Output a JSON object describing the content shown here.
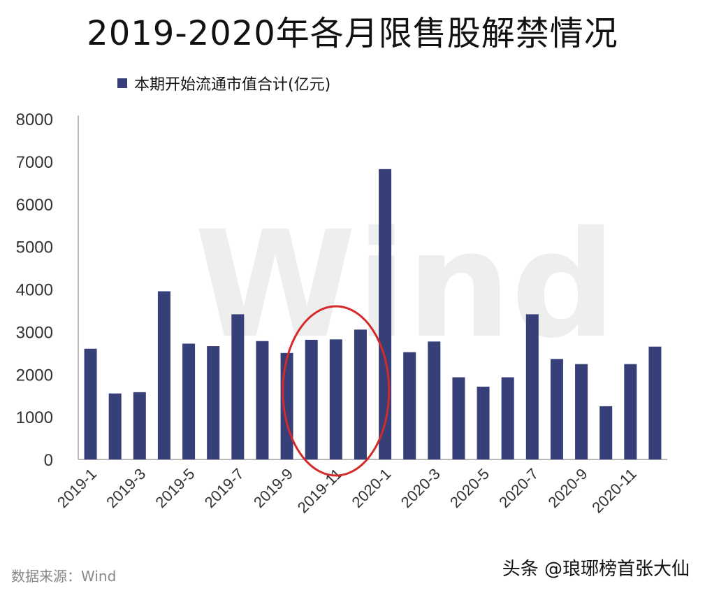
{
  "source_text": "数据来源：Wind",
  "credit_text": "头条 @琅琊榜首张大仙",
  "watermark": "Wind",
  "colors": {
    "bar": "#363f78",
    "axis": "#b8b8b8",
    "highlight": "#d42a2a",
    "watermark": "#eeeeee"
  },
  "chart_data": {
    "type": "bar",
    "title": "2019-2020年各月限售股解禁情况",
    "xlabel": "",
    "ylabel": "",
    "ylim": [
      0,
      8000
    ],
    "yticks": [
      0,
      1000,
      2000,
      3000,
      4000,
      5000,
      6000,
      7000,
      8000
    ],
    "grid": false,
    "legend_position": "top-left",
    "categories": [
      "2019-1",
      "2019-2",
      "2019-3",
      "2019-4",
      "2019-5",
      "2019-6",
      "2019-7",
      "2019-8",
      "2019-9",
      "2019-10",
      "2019-11",
      "2019-12",
      "2020-1",
      "2020-2",
      "2020-3",
      "2020-4",
      "2020-5",
      "2020-6",
      "2020-7",
      "2020-8",
      "2020-9",
      "2020-10",
      "2020-11",
      "2020-12"
    ],
    "x_tick_labels": [
      "2019-1",
      "",
      "2019-3",
      "",
      "2019-5",
      "",
      "2019-7",
      "",
      "2019-9",
      "",
      "2019-11",
      "",
      "2020-1",
      "",
      "2020-3",
      "",
      "2020-5",
      "",
      "2020-7",
      "",
      "2020-9",
      "",
      "2020-11",
      ""
    ],
    "series": [
      {
        "name": "本期开始流通市值合计(亿元)",
        "values": [
          2600,
          1550,
          1580,
          3950,
          2720,
          2660,
          3410,
          2780,
          2500,
          2810,
          2820,
          3050,
          6820,
          2520,
          2770,
          1930,
          1710,
          1930,
          3410,
          2360,
          2240,
          1250,
          2240,
          2650
        ]
      }
    ],
    "annotations": [
      {
        "type": "ellipse",
        "covers_categories": [
          "2019-10",
          "2019-11",
          "2019-12"
        ]
      }
    ]
  }
}
